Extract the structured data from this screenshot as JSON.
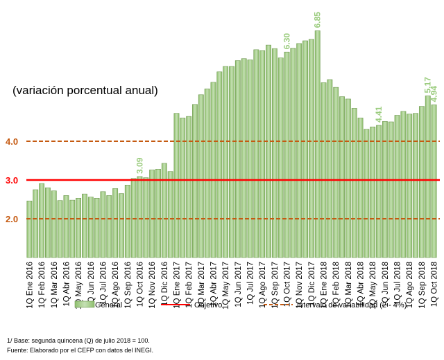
{
  "chart_data": {
    "type": "bar",
    "annotation": "(variación porcentual anual)",
    "categories": [
      "1Q Ene 2016",
      null,
      "1Q Feb 2016",
      null,
      "1Q Mar 2016",
      null,
      "1Q Abr 2016",
      null,
      "1Q May 2016",
      null,
      "1Q Jun 2016",
      null,
      "1Q Jul 2016",
      null,
      "1Q Ago 2016",
      null,
      "1Q Sep 2016",
      null,
      "1Q Oct 2016",
      null,
      "1Q Nov 2016",
      null,
      "1Q Dic 2016",
      null,
      "1Q Ene 2017",
      null,
      "1Q Feb 2017",
      null,
      "1Q Mar 2017",
      null,
      "1Q Abr 2017",
      null,
      "1Q May 2017",
      null,
      "1Q Jun 2017",
      null,
      "1Q Jul 2017",
      null,
      "1Q Ago 2017",
      null,
      "1Q Sep 2017",
      null,
      "1Q Oct 2017",
      null,
      "1Q Nov 2017",
      null,
      "1Q Dic 2017",
      null,
      "1Q Ene 2018",
      null,
      "1Q Feb 2018",
      null,
      "1Q Mar 2018",
      null,
      "1Q Abr 2018",
      null,
      "1Q May 2018",
      null,
      "1Q Jun 2018",
      null,
      "1Q Jul 2018",
      null,
      "1Q Ago 2018",
      null,
      "1Q Sep 2018",
      null,
      "1Q Oct 2018"
    ],
    "series": [
      {
        "name": "General",
        "color": "#a9d18e",
        "values": [
          2.46,
          2.75,
          2.91,
          2.8,
          2.72,
          2.47,
          2.6,
          2.48,
          2.53,
          2.64,
          2.56,
          2.53,
          2.7,
          2.6,
          2.78,
          2.65,
          2.87,
          3.04,
          3.09,
          3.06,
          3.26,
          3.28,
          3.43,
          3.22,
          4.72,
          4.6,
          4.64,
          4.95,
          5.2,
          5.35,
          5.52,
          5.79,
          5.93,
          5.93,
          6.08,
          6.13,
          6.1,
          6.36,
          6.34,
          6.48,
          6.39,
          6.15,
          6.3,
          6.4,
          6.52,
          6.59,
          6.63,
          6.85,
          5.51,
          5.59,
          5.39,
          5.15,
          5.09,
          4.85,
          4.6,
          4.31,
          4.37,
          4.41,
          4.51,
          4.5,
          4.67,
          4.77,
          4.7,
          4.72,
          4.9,
          5.17,
          4.94
        ],
        "value_labels": [
          null,
          null,
          null,
          null,
          null,
          null,
          null,
          null,
          null,
          null,
          null,
          null,
          null,
          null,
          null,
          null,
          null,
          null,
          "3.09",
          null,
          null,
          null,
          null,
          null,
          null,
          null,
          null,
          null,
          null,
          null,
          null,
          null,
          null,
          null,
          null,
          null,
          null,
          null,
          null,
          null,
          null,
          null,
          "6.30",
          null,
          null,
          null,
          null,
          "6.85",
          null,
          null,
          null,
          null,
          null,
          null,
          null,
          null,
          null,
          "4.41",
          null,
          null,
          null,
          null,
          null,
          null,
          null,
          "5.17",
          "4.94"
        ]
      }
    ],
    "reference_lines": [
      {
        "name": "Objetivo",
        "color": "#ff0000",
        "dashed": false,
        "values": [
          3
        ],
        "value_labels": [
          "3.0"
        ]
      },
      {
        "name": "Intervalo de variabilidad (2 - 4%)",
        "color": "#c55a11",
        "dashed": true,
        "values": [
          2,
          4
        ],
        "value_labels": [
          "2.0",
          "4.0"
        ]
      }
    ],
    "ylim": [
      1,
      7
    ],
    "footnotes": [
      "1/ Base: segunda quincena (Q) de julio 2018 = 100.",
      "Fuente: Elaborado por el CEFP con  datos del INEGI."
    ]
  }
}
